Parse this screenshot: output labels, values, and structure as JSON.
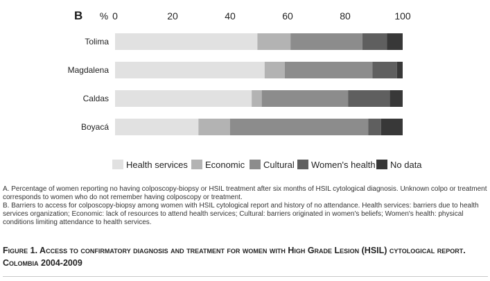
{
  "chart_data": {
    "type": "bar",
    "orientation": "horizontal",
    "stacked": true,
    "panel_label": "B",
    "unit_label": "%",
    "xlim": [
      0,
      100
    ],
    "xticks": [
      0,
      20,
      40,
      60,
      80,
      100
    ],
    "categories": [
      "Tolima",
      "Magdalena",
      "Caldas",
      "Boyacá"
    ],
    "series": [
      {
        "name": "Health services",
        "color": "#e1e1e1",
        "values": [
          49.5,
          52,
          47.5,
          29
        ]
      },
      {
        "name": "Economic",
        "color": "#b3b3b3",
        "values": [
          11.5,
          7,
          3.5,
          11
        ]
      },
      {
        "name": "Cultural",
        "color": "#8c8c8c",
        "values": [
          25,
          30.5,
          30,
          48
        ]
      },
      {
        "name": "Women's health",
        "color": "#5f5f5f",
        "values": [
          8.5,
          8.5,
          14.5,
          4.5
        ]
      },
      {
        "name": "No data",
        "color": "#383838",
        "values": [
          5.5,
          2,
          4.5,
          7.5
        ]
      }
    ],
    "legend_position": "bottom"
  },
  "notes": {
    "a": "A. Percentage of women reporting no having colposcopy-biopsy or HSIL treatment after six months of HSIL cytological diagnosis. Unknown colpo or treatment corresponds to women who do not remember having colposcopy or treatment.",
    "b": "B. Barriers to access for colposcopy-biopsy among women with HSIL cytological report and history of no attendance. Health services: barriers due to health services organization; Economic: lack of resources to attend health services; Cultural: barriers originated in women's beliefs; Women's health: physical conditions limiting attendance to health services."
  },
  "caption": "Figure 1. Access to confirmatory diagnosis and treatment for women with High Grade Lesion (HSIL) cytological report. Colombia 2004-2009"
}
